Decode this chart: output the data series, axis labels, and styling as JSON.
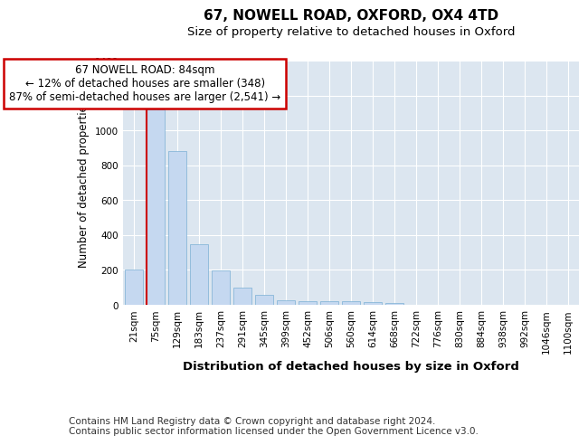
{
  "title": "67, NOWELL ROAD, OXFORD, OX4 4TD",
  "subtitle": "Size of property relative to detached houses in Oxford",
  "xlabel": "Distribution of detached houses by size in Oxford",
  "ylabel": "Number of detached properties",
  "categories": [
    "21sqm",
    "75sqm",
    "129sqm",
    "183sqm",
    "237sqm",
    "291sqm",
    "345sqm",
    "399sqm",
    "452sqm",
    "506sqm",
    "560sqm",
    "614sqm",
    "668sqm",
    "722sqm",
    "776sqm",
    "830sqm",
    "884sqm",
    "938sqm",
    "992sqm",
    "1046sqm",
    "1100sqm"
  ],
  "values": [
    200,
    1120,
    880,
    350,
    195,
    100,
    55,
    25,
    20,
    20,
    20,
    15,
    10,
    0,
    0,
    0,
    0,
    0,
    0,
    0,
    0
  ],
  "bar_color": "#c5d8f0",
  "bar_edge_color": "#7aafd4",
  "highlight_bar_index": 1,
  "vline_color": "#cc0000",
  "annotation_box_text": "67 NOWELL ROAD: 84sqm\n← 12% of detached houses are smaller (348)\n87% of semi-detached houses are larger (2,541) →",
  "annotation_box_color": "#ffffff",
  "annotation_box_edge_color": "#cc0000",
  "ylim": [
    0,
    1400
  ],
  "yticks": [
    0,
    200,
    400,
    600,
    800,
    1000,
    1200,
    1400
  ],
  "footer_text": "Contains HM Land Registry data © Crown copyright and database right 2024.\nContains public sector information licensed under the Open Government Licence v3.0.",
  "background_color": "#ffffff",
  "plot_background_color": "#dce6f0",
  "grid_color": "#ffffff",
  "title_fontsize": 11,
  "subtitle_fontsize": 9.5,
  "xlabel_fontsize": 9.5,
  "ylabel_fontsize": 8.5,
  "tick_fontsize": 7.5,
  "footer_fontsize": 7.5
}
